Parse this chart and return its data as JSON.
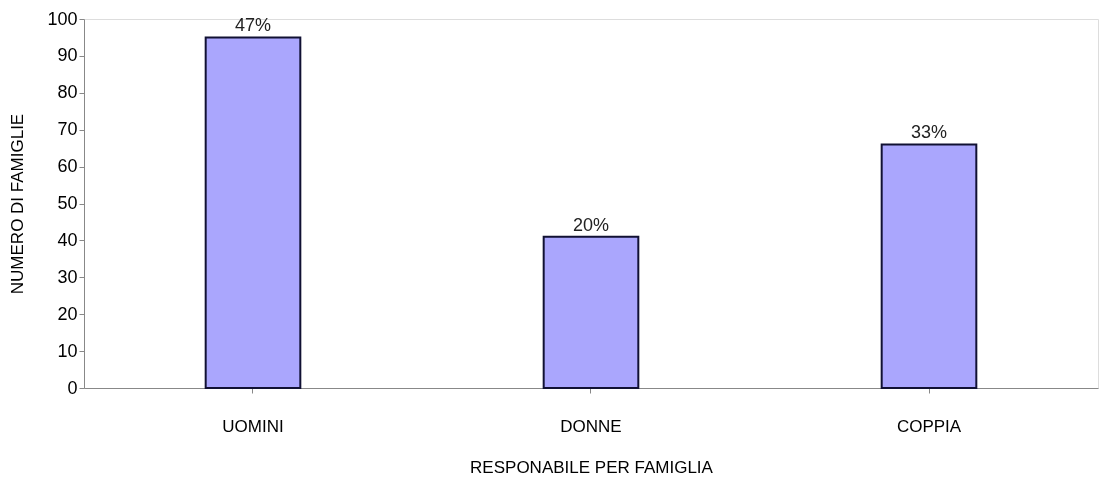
{
  "chart_data": {
    "type": "bar",
    "xlabel": "RESPONABILE PER FAMIGLIA",
    "ylabel": "NUMERO DI FAMIGLIE",
    "categories": [
      "UOMINI",
      "DONNE",
      "COPPIA"
    ],
    "values": [
      95,
      41,
      66
    ],
    "annotations": [
      {
        "text": "47%",
        "x": "UOMINI",
        "y": 95
      },
      {
        "text": "20%",
        "x": "DONNE",
        "y": 41
      },
      {
        "text": "33%",
        "x": "COPPIA",
        "y": 66
      }
    ],
    "color": "#aaa6fd",
    "ylim": [
      0,
      100
    ],
    "yticks": [
      0,
      10,
      20,
      30,
      40,
      50,
      60,
      70,
      80,
      90,
      100
    ],
    "grid": false
  }
}
